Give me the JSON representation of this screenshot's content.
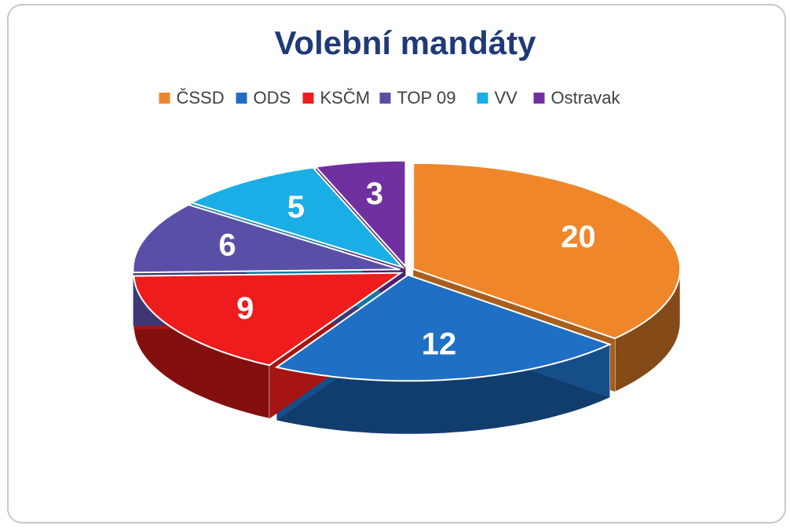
{
  "chart_data": {
    "type": "pie",
    "title": "Volební mandáty",
    "categories": [
      "ČSSD",
      "ODS",
      "KSČM",
      "TOP 09",
      "VV",
      "Ostravak"
    ],
    "values": [
      20,
      12,
      9,
      6,
      5,
      3
    ],
    "colors": [
      "#f0862a",
      "#1f6fc5",
      "#ee1c1c",
      "#5a4fa6",
      "#1aaee6",
      "#7030a0"
    ],
    "legend": "top"
  }
}
